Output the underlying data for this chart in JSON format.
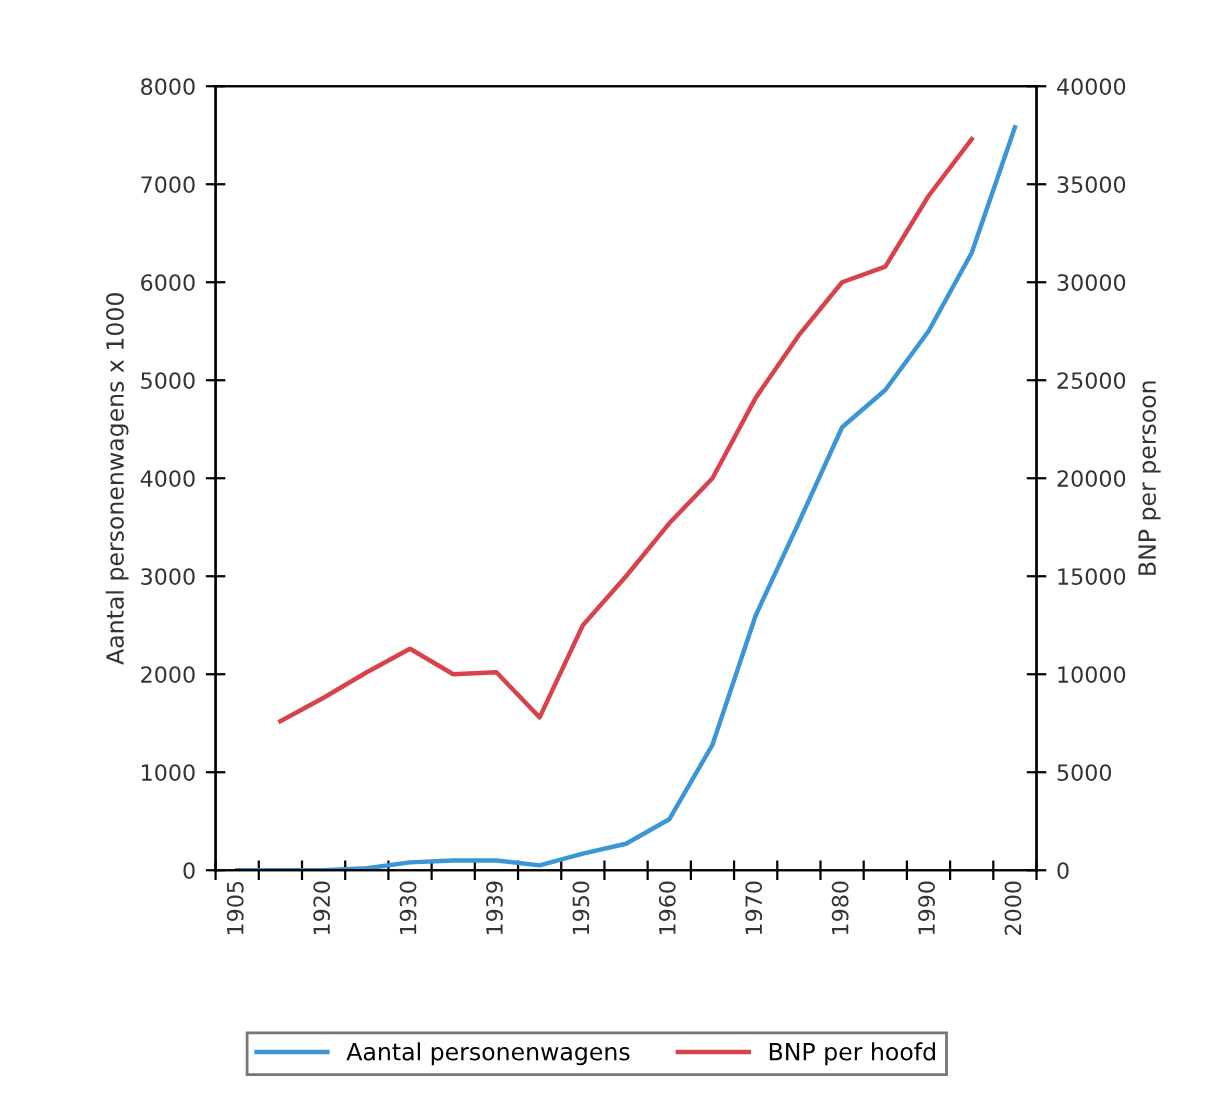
{
  "chart_data": {
    "type": "line",
    "ylabel": "Aantal personenwagens x 1000",
    "y2label": "BNP per persoon",
    "categories": [
      "1905",
      null,
      "1920",
      null,
      "1930",
      null,
      "1939",
      null,
      "1950",
      null,
      "1960",
      null,
      "1970",
      null,
      "1980",
      null,
      "1990",
      null,
      "2000"
    ],
    "ylim": [
      0,
      8000
    ],
    "yticks": [
      0,
      1000,
      2000,
      3000,
      4000,
      5000,
      6000,
      7000,
      8000
    ],
    "y2lim": [
      0,
      40000
    ],
    "y2ticks": [
      0,
      5000,
      10000,
      15000,
      20000,
      25000,
      30000,
      35000,
      40000
    ],
    "series": [
      {
        "name": "Aantal personenwagens",
        "color": "#3a96d6",
        "values": [
          0,
          0,
          0,
          20,
          80,
          100,
          100,
          50,
          170,
          270,
          520,
          1280,
          2600,
          3550,
          4520,
          4900,
          5500,
          6300,
          7580
        ]
      },
      {
        "name": "BNP per hoofd",
        "color": "#d7424b",
        "axis": "y2",
        "values": [
          null,
          7600,
          8800,
          10100,
          11300,
          10000,
          10100,
          7800,
          12500,
          15000,
          17700,
          20000,
          24100,
          27300,
          30000,
          30800,
          34400,
          37300,
          null
        ]
      }
    ],
    "legend": "bottom",
    "grid": false,
    "marker": "none",
    "line_style": "solid"
  }
}
